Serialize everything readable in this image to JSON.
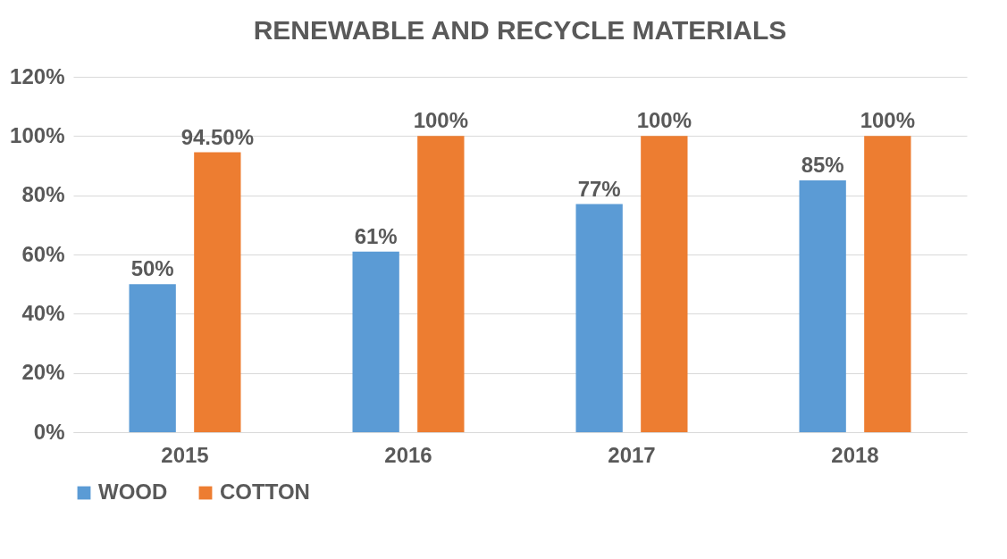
{
  "chart_data": {
    "type": "bar",
    "title": "RENEWABLE AND RECYCLE MATERIALS",
    "categories": [
      "2015",
      "2016",
      "2017",
      "2018"
    ],
    "series": [
      {
        "name": "WOOD",
        "color": "#5b9bd5",
        "values": [
          50,
          61,
          77,
          85
        ],
        "value_labels": [
          "50%",
          "61%",
          "77%",
          "85%"
        ]
      },
      {
        "name": "COTTON",
        "color": "#ed7d31",
        "values": [
          94.5,
          100,
          100,
          100
        ],
        "value_labels": [
          "94.50%",
          "100%",
          "100%",
          "100%"
        ]
      }
    ],
    "ylim": [
      0,
      120
    ],
    "yticks": [
      {
        "value": 0,
        "label": "0%"
      },
      {
        "value": 20,
        "label": "20%"
      },
      {
        "value": 40,
        "label": "40%"
      },
      {
        "value": 60,
        "label": "60%"
      },
      {
        "value": 80,
        "label": "80%"
      },
      {
        "value": 100,
        "label": "100%"
      },
      {
        "value": 120,
        "label": "120%"
      }
    ],
    "grid": "y",
    "legend": "bottom"
  }
}
